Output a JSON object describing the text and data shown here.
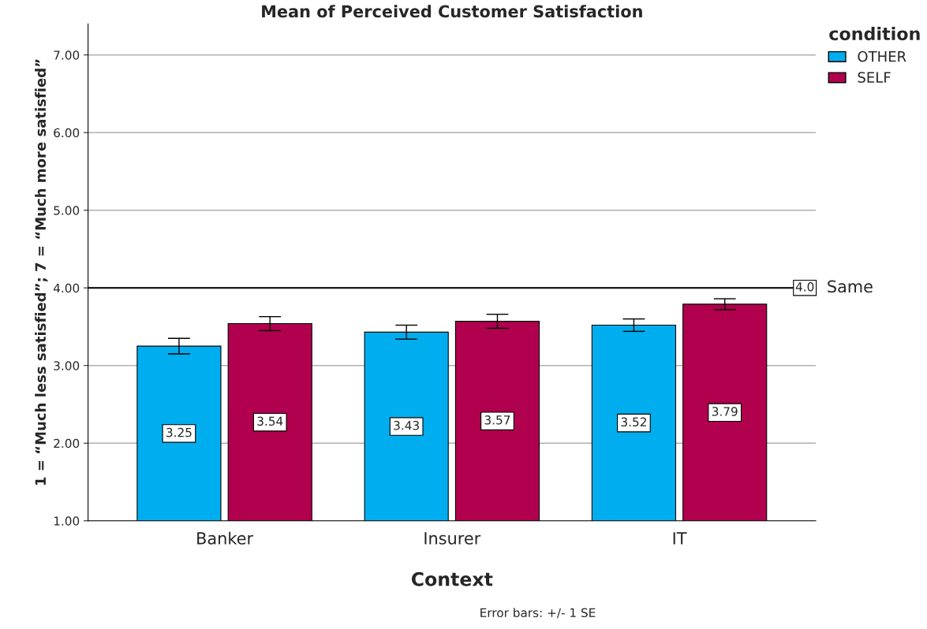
{
  "chart_data": {
    "type": "bar",
    "title": "Mean of Perceived Customer Satisfaction",
    "xlabel": "Context",
    "ylabel": "1 = “Much less satisfied”; 7 = “Much more satisfied”",
    "legend_title": "condition",
    "legend": "top right",
    "categories": [
      "Banker",
      "Insurer",
      "IT"
    ],
    "series": [
      {
        "name": "OTHER",
        "color": "#00aeef",
        "values": [
          3.25,
          3.43,
          3.52
        ],
        "errors": [
          0.1,
          0.09,
          0.08
        ]
      },
      {
        "name": "SELF",
        "color": "#b0004e",
        "values": [
          3.54,
          3.57,
          3.79
        ],
        "errors": [
          0.09,
          0.09,
          0.07
        ]
      }
    ],
    "data_labels": true,
    "ylim": [
      1,
      7.4
    ],
    "yticks": [
      {
        "value": 1,
        "label": "1.00"
      },
      {
        "value": 2,
        "label": "2.00"
      },
      {
        "value": 3,
        "label": "3.00"
      },
      {
        "value": 4,
        "label": "4.00"
      },
      {
        "value": 5,
        "label": "5.00"
      },
      {
        "value": 6,
        "label": "6.00"
      },
      {
        "value": 7,
        "label": "7.00"
      }
    ],
    "grid": "y",
    "ref_lines": [
      {
        "axis": "y",
        "value": 4.0,
        "label": "Same",
        "color": "#000000"
      }
    ],
    "annotations": [
      {
        "text": "4.0",
        "y": 4.0
      },
      "Error bars: +/- 1 SE"
    ]
  }
}
